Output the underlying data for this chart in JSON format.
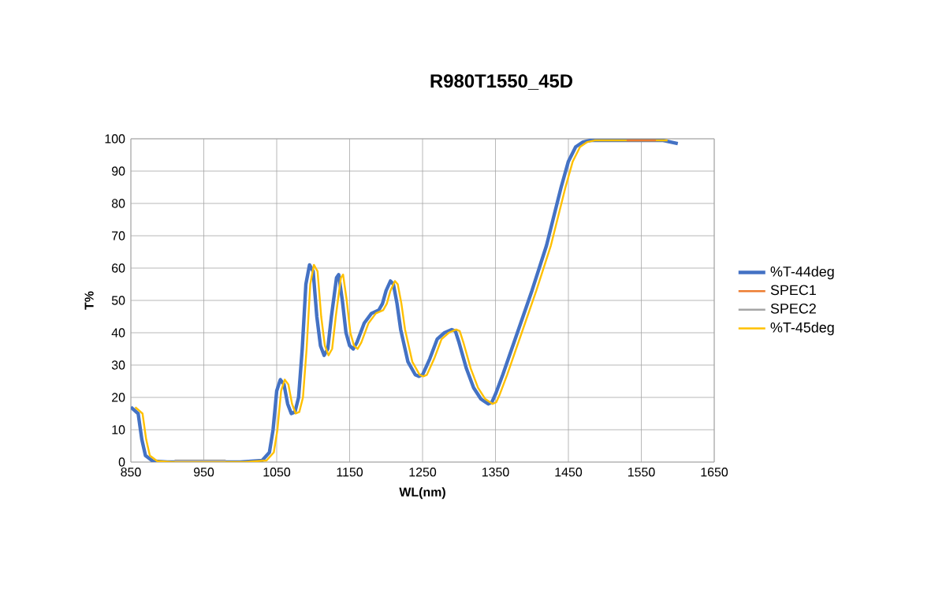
{
  "chart_data": {
    "type": "line",
    "title": "R980T1550_45D",
    "xlabel": "WL(nm)",
    "ylabel": "T%",
    "xlim": [
      850,
      1650
    ],
    "ylim": [
      0,
      100
    ],
    "xticks": [
      850,
      950,
      1050,
      1150,
      1250,
      1350,
      1450,
      1550,
      1650
    ],
    "yticks": [
      0,
      10,
      20,
      30,
      40,
      50,
      60,
      70,
      80,
      90,
      100
    ],
    "grid": true,
    "legend": "right",
    "marker": "none",
    "line_style": "solid",
    "series": [
      {
        "name": "%T-44deg",
        "color": "#4472c4",
        "x": [
          850,
          855,
          860,
          865,
          870,
          880,
          900,
          1000,
          1030,
          1040,
          1045,
          1050,
          1055,
          1060,
          1065,
          1070,
          1075,
          1080,
          1085,
          1090,
          1095,
          1100,
          1105,
          1110,
          1115,
          1120,
          1125,
          1132,
          1135,
          1140,
          1145,
          1150,
          1155,
          1160,
          1170,
          1180,
          1190,
          1195,
          1200,
          1206,
          1210,
          1215,
          1220,
          1230,
          1240,
          1245,
          1250,
          1260,
          1270,
          1280,
          1290,
          1295,
          1300,
          1310,
          1320,
          1330,
          1340,
          1345,
          1350,
          1360,
          1380,
          1400,
          1420,
          1440,
          1450,
          1460,
          1470,
          1480,
          1550,
          1580,
          1600
        ],
        "values": [
          17,
          16,
          15,
          7,
          2,
          0.3,
          0,
          0,
          0.5,
          3,
          10,
          22,
          25.5,
          24,
          18,
          15,
          15.5,
          20,
          35,
          55,
          61,
          59,
          45,
          36,
          33,
          35,
          45,
          57,
          58,
          50,
          40,
          36,
          35,
          37,
          43,
          46,
          47,
          49,
          53,
          56,
          55,
          49,
          41,
          31,
          27,
          26.5,
          27,
          32,
          38,
          40,
          41,
          40.5,
          37,
          29,
          23,
          19.5,
          18,
          18.5,
          21,
          27,
          40,
          53,
          67,
          85,
          93,
          97.5,
          99,
          99.5,
          99.5,
          99.5,
          98.5
        ]
      },
      {
        "name": "SPEC1",
        "color": "#ed7d31",
        "x": [
          1530,
          1570
        ],
        "values": [
          99.5,
          99.5
        ]
      },
      {
        "name": "SPEC2",
        "color": "#a5a5a5",
        "x": [
          910,
          980
        ],
        "values": [
          0.5,
          0.5
        ]
      },
      {
        "name": "%T-45deg",
        "color": "#ffc000",
        "x": [
          856,
          861,
          866,
          871,
          876,
          886,
          906,
          1006,
          1036,
          1046,
          1051,
          1056,
          1061,
          1066,
          1071,
          1076,
          1081,
          1086,
          1091,
          1096,
          1101,
          1106,
          1111,
          1116,
          1121,
          1126,
          1131,
          1138,
          1141,
          1146,
          1151,
          1156,
          1161,
          1166,
          1176,
          1186,
          1196,
          1201,
          1206,
          1212,
          1216,
          1221,
          1226,
          1236,
          1246,
          1251,
          1256,
          1266,
          1276,
          1286,
          1296,
          1301,
          1306,
          1316,
          1326,
          1336,
          1346,
          1351,
          1356,
          1366,
          1386,
          1406,
          1426,
          1446,
          1456,
          1466,
          1476,
          1486,
          1556,
          1586
        ],
        "values": [
          17,
          16,
          15,
          7,
          2,
          0.3,
          0,
          0,
          0.5,
          3,
          10,
          22,
          25.5,
          24,
          18,
          15,
          15.5,
          20,
          35,
          55,
          61,
          59,
          45,
          36,
          33,
          35,
          45,
          57,
          58,
          50,
          40,
          36,
          35,
          37,
          43,
          46,
          47,
          49,
          53,
          56,
          55,
          49,
          41,
          31,
          27,
          26.5,
          27,
          32,
          38,
          40,
          41,
          40.5,
          37,
          29,
          23,
          19.5,
          18,
          18.5,
          21,
          27,
          40,
          53,
          67,
          85,
          93,
          97.5,
          99,
          99.5,
          99.5,
          99.5
        ]
      }
    ]
  }
}
